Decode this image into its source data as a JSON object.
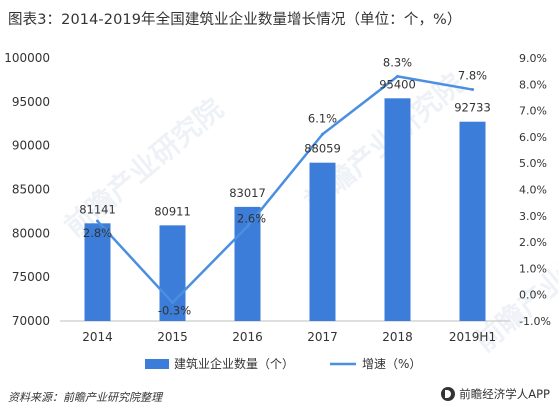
{
  "title": "图表3：2014-2019年全国建筑业企业数量增长情况（单位：个，%）",
  "footer": {
    "source": "资料来源：前瞻产业研究院整理",
    "brand": "前瞻经济学人APP"
  },
  "watermarks": [
    "前瞻产业研究院",
    "前瞻产业研究院",
    "前瞻产业研究院"
  ],
  "colors": {
    "bar": "#3b7dd8",
    "line": "#4a8fe0",
    "grid": "#e6e6e6"
  },
  "chart_data": {
    "type": "bar+line",
    "categories": [
      "2014",
      "2015",
      "2016",
      "2017",
      "2018",
      "2019H1"
    ],
    "series": [
      {
        "name": "建筑业企业数量（个）",
        "type": "bar",
        "axis": "left",
        "values": [
          81141,
          80911,
          83017,
          88059,
          95400,
          92733
        ],
        "labels": [
          "81141",
          "80911",
          "83017",
          "88059",
          "95400",
          "92733"
        ]
      },
      {
        "name": "增速（%）",
        "type": "line",
        "axis": "right",
        "values": [
          2.8,
          -0.3,
          2.6,
          6.1,
          8.3,
          7.8
        ],
        "labels": [
          "2.8%",
          "-0.3%",
          "2.6%",
          "6.1%",
          "8.3%",
          "7.8%"
        ]
      }
    ],
    "y_left": {
      "min": 70000,
      "max": 100000,
      "step": 5000,
      "ticks": [
        "70000",
        "75000",
        "80000",
        "85000",
        "90000",
        "95000",
        "100000"
      ]
    },
    "y_right": {
      "min": -1.0,
      "max": 9.0,
      "step": 1.0,
      "ticks": [
        "-1.0%",
        "0.0%",
        "1.0%",
        "2.0%",
        "3.0%",
        "4.0%",
        "5.0%",
        "6.0%",
        "7.0%",
        "8.0%",
        "9.0%"
      ]
    },
    "grid": false,
    "legend": "bottom"
  }
}
